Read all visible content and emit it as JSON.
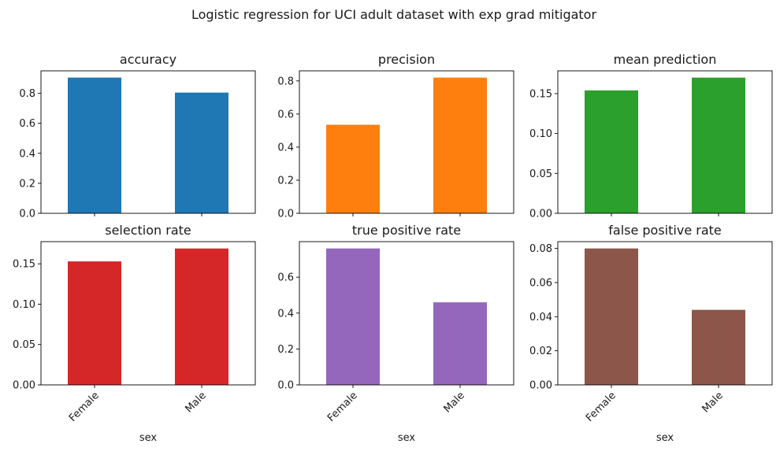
{
  "figure": {
    "suptitle": "Logistic regression for UCI adult dataset with exp grad mitigator"
  },
  "chart_data": [
    {
      "type": "bar",
      "title": "accuracy",
      "categories": [
        "Female",
        "Male"
      ],
      "values": [
        0.905,
        0.805
      ],
      "ylim": [
        0,
        0.95
      ],
      "yticks": [
        "0.0",
        "0.2",
        "0.4",
        "0.6",
        "0.8"
      ],
      "ytick_values": [
        0,
        0.2,
        0.4,
        0.6,
        0.8
      ],
      "color": "#1f77b4",
      "xlabel": "",
      "show_xticklabels": false
    },
    {
      "type": "bar",
      "title": "precision",
      "categories": [
        "Female",
        "Male"
      ],
      "values": [
        0.535,
        0.82
      ],
      "ylim": [
        0,
        0.861
      ],
      "yticks": [
        "0.0",
        "0.2",
        "0.4",
        "0.6",
        "0.8"
      ],
      "ytick_values": [
        0,
        0.2,
        0.4,
        0.6,
        0.8
      ],
      "color": "#ff7f0e",
      "xlabel": "",
      "show_xticklabels": false
    },
    {
      "type": "bar",
      "title": "mean prediction",
      "categories": [
        "Female",
        "Male"
      ],
      "values": [
        0.154,
        0.17
      ],
      "ylim": [
        0,
        0.1785
      ],
      "yticks": [
        "0.00",
        "0.05",
        "0.10",
        "0.15"
      ],
      "ytick_values": [
        0,
        0.05,
        0.1,
        0.15
      ],
      "color": "#2ca02c",
      "xlabel": "",
      "show_xticklabels": false
    },
    {
      "type": "bar",
      "title": "selection rate",
      "categories": [
        "Female",
        "Male"
      ],
      "values": [
        0.153,
        0.169
      ],
      "ylim": [
        0,
        0.1775
      ],
      "yticks": [
        "0.00",
        "0.05",
        "0.10",
        "0.15"
      ],
      "ytick_values": [
        0,
        0.05,
        0.1,
        0.15
      ],
      "color": "#d62728",
      "xlabel": "sex",
      "show_xticklabels": true
    },
    {
      "type": "bar",
      "title": "true positive rate",
      "categories": [
        "Female",
        "Male"
      ],
      "values": [
        0.76,
        0.46
      ],
      "ylim": [
        0,
        0.798
      ],
      "yticks": [
        "0.0",
        "0.2",
        "0.4",
        "0.6"
      ],
      "ytick_values": [
        0,
        0.2,
        0.4,
        0.6
      ],
      "color": "#9467bd",
      "xlabel": "sex",
      "show_xticklabels": true
    },
    {
      "type": "bar",
      "title": "false positive rate",
      "categories": [
        "Female",
        "Male"
      ],
      "values": [
        0.08,
        0.044
      ],
      "ylim": [
        0,
        0.084
      ],
      "yticks": [
        "0.00",
        "0.02",
        "0.04",
        "0.06",
        "0.08"
      ],
      "ytick_values": [
        0,
        0.02,
        0.04,
        0.06,
        0.08
      ],
      "color": "#8c564b",
      "xlabel": "sex",
      "show_xticklabels": true
    }
  ]
}
